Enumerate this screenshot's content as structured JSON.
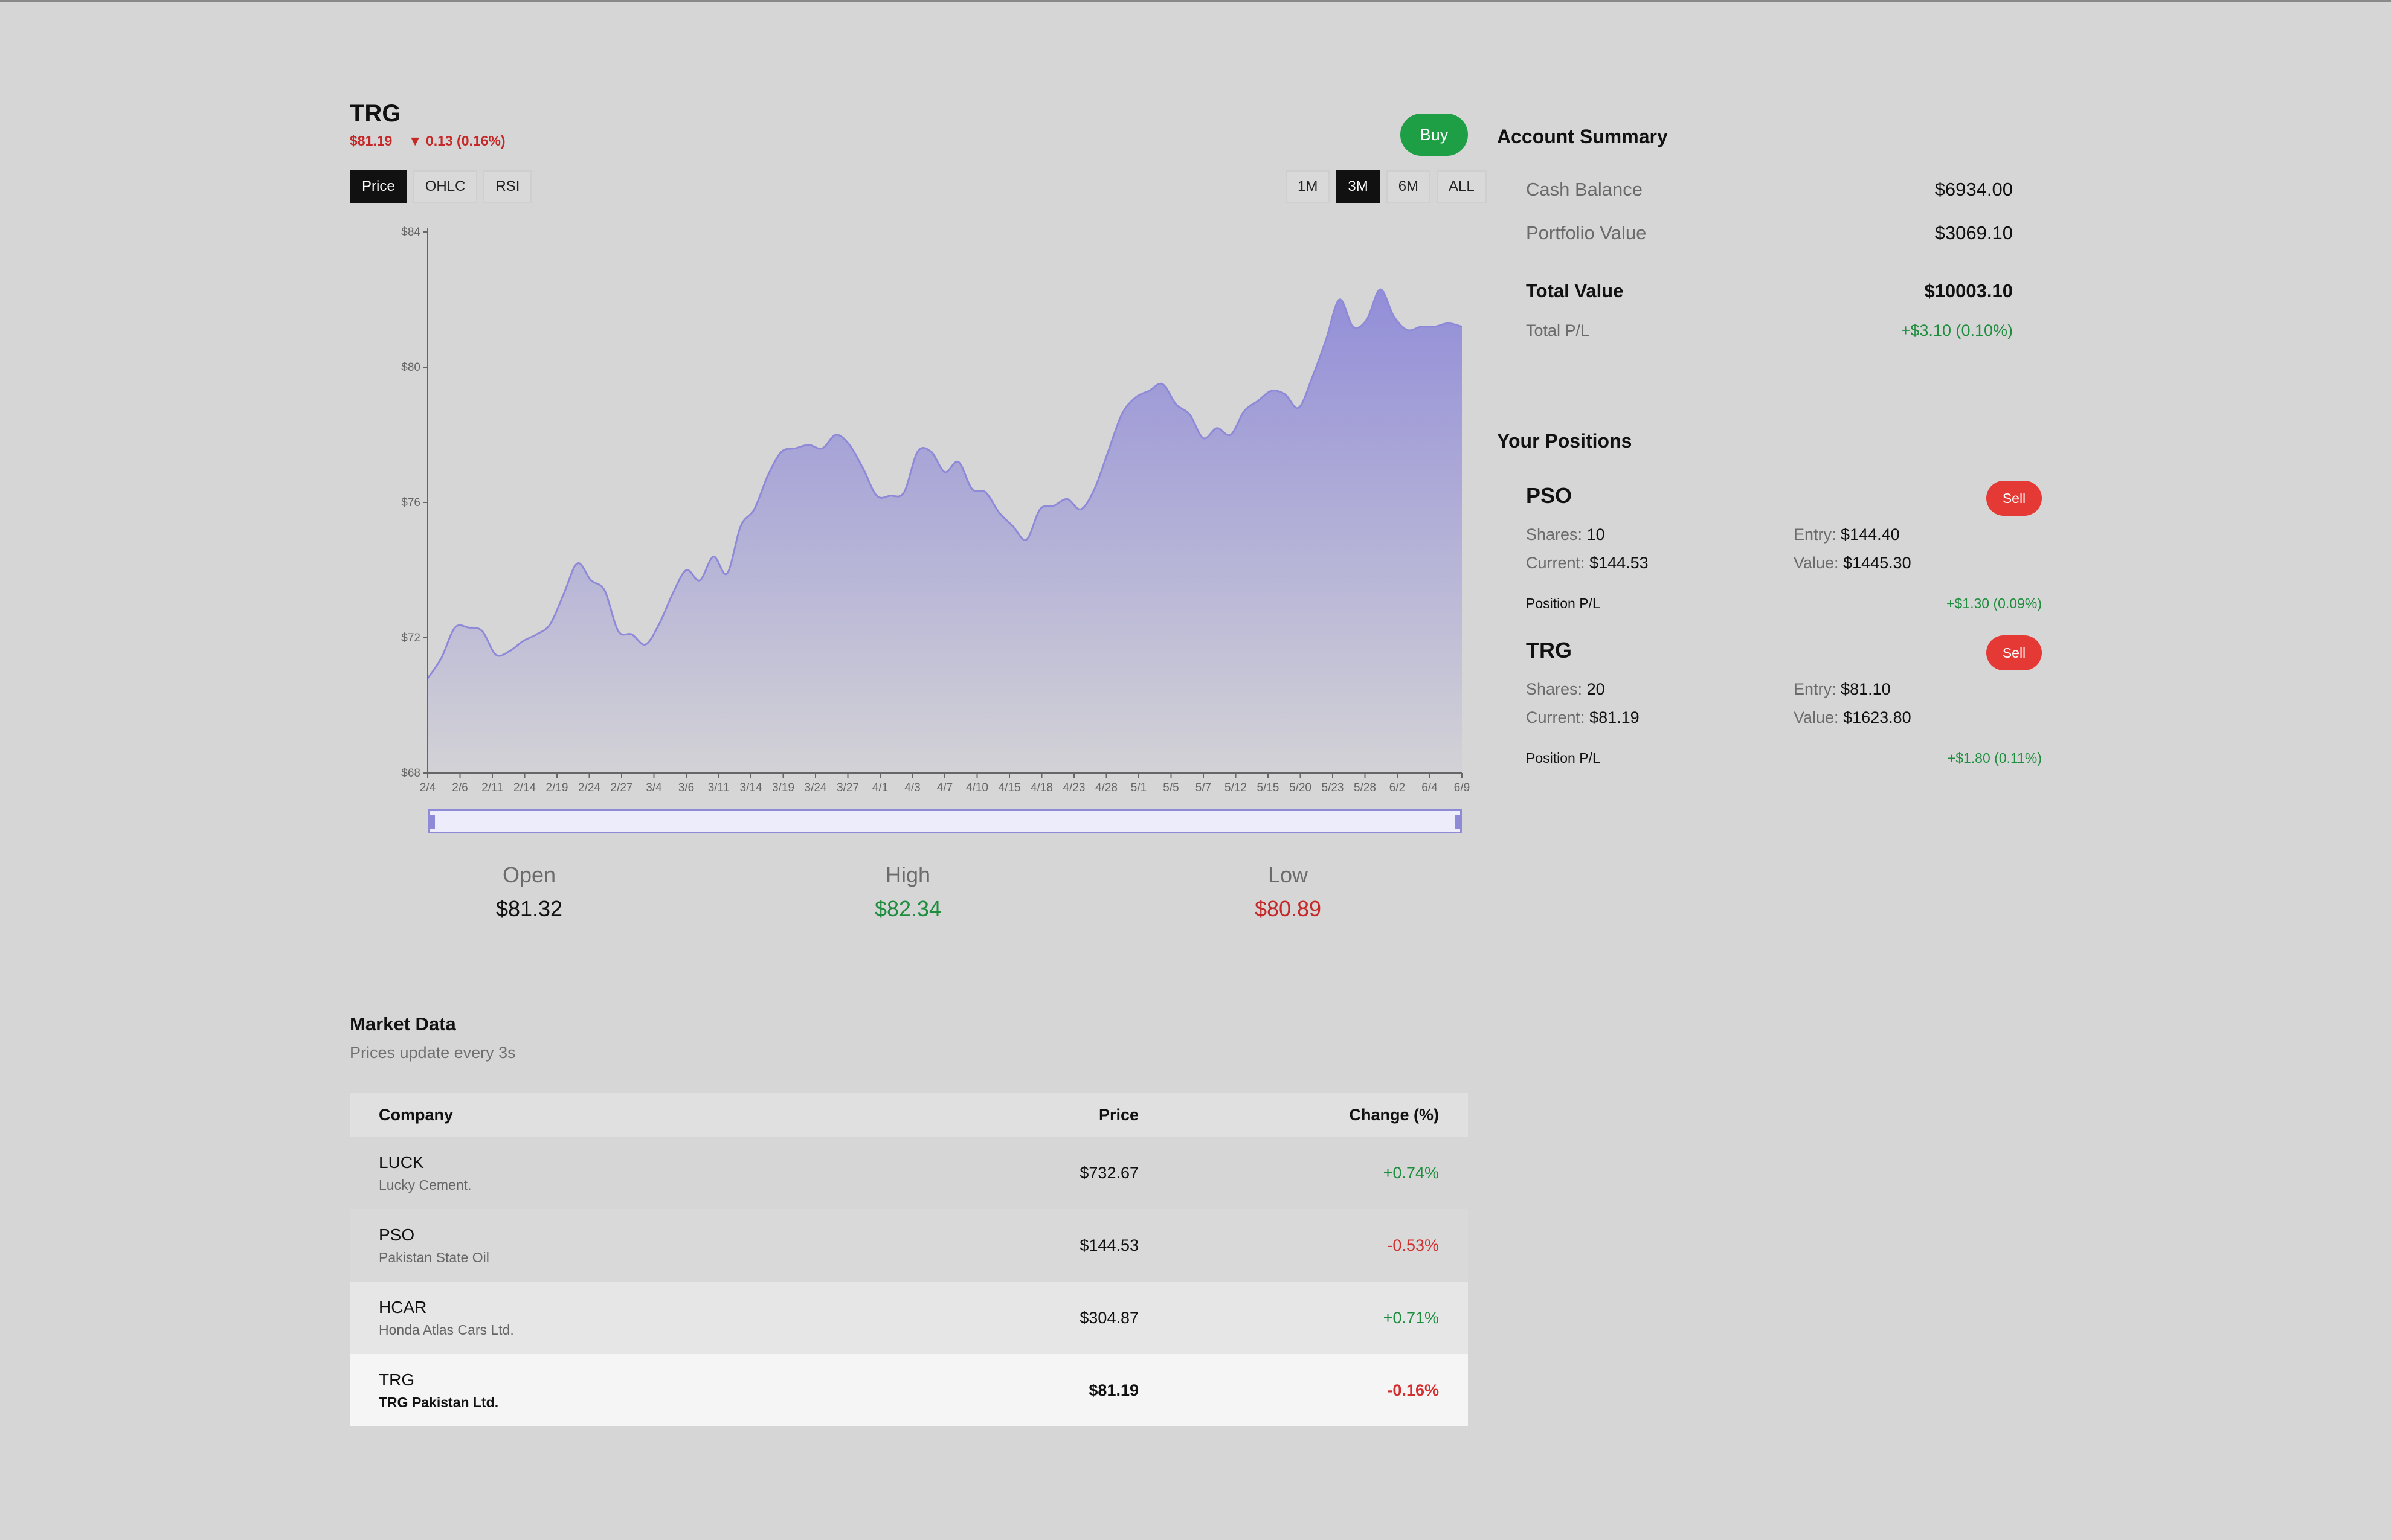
{
  "stock": {
    "ticker": "TRG",
    "price": "$81.19",
    "change": "▼ 0.13 (0.16%)",
    "buy_label": "Buy"
  },
  "chart_tabs": [
    "Price",
    "OHLC",
    "RSI"
  ],
  "active_tab": "Price",
  "ranges": [
    "1M",
    "3M",
    "6M",
    "ALL"
  ],
  "active_range": "3M",
  "chart_data": {
    "type": "area",
    "y_ticks": [
      "$84",
      "$80",
      "$76",
      "$72",
      "$68"
    ],
    "ylim": [
      68,
      84
    ],
    "x_labels": [
      "2/4",
      "2/6",
      "2/11",
      "2/14",
      "2/19",
      "2/24",
      "2/27",
      "3/4",
      "3/6",
      "3/11",
      "3/14",
      "3/19",
      "3/24",
      "3/27",
      "4/1",
      "4/3",
      "4/7",
      "4/10",
      "4/15",
      "4/18",
      "4/23",
      "4/28",
      "5/1",
      "5/5",
      "5/7",
      "5/12",
      "5/15",
      "5/20",
      "5/23",
      "5/28",
      "6/2",
      "6/4",
      "6/9"
    ],
    "values": [
      70.8,
      71.4,
      72.3,
      72.3,
      72.2,
      71.5,
      71.6,
      71.9,
      72.1,
      72.4,
      73.3,
      74.2,
      73.7,
      73.4,
      72.2,
      72.1,
      71.8,
      72.4,
      73.3,
      74.0,
      73.7,
      74.4,
      73.9,
      75.3,
      75.8,
      76.8,
      77.5,
      77.6,
      77.7,
      77.6,
      78.0,
      77.7,
      77.0,
      76.2,
      76.2,
      76.3,
      77.5,
      77.5,
      76.9,
      77.2,
      76.4,
      76.3,
      75.7,
      75.3,
      74.9,
      75.8,
      75.9,
      76.1,
      75.8,
      76.4,
      77.5,
      78.6,
      79.1,
      79.3,
      79.5,
      78.9,
      78.6,
      77.9,
      78.2,
      78.0,
      78.7,
      79.0,
      79.3,
      79.2,
      78.8,
      79.7,
      80.8,
      82.0,
      81.2,
      81.4,
      82.3,
      81.5,
      81.1,
      81.2,
      81.2,
      81.3,
      81.2
    ],
    "color": "#8f8ad8"
  },
  "ohl": {
    "open_label": "Open",
    "open": "$81.32",
    "high_label": "High",
    "high": "$82.34",
    "low_label": "Low",
    "low": "$80.89"
  },
  "market": {
    "title": "Market Data",
    "subtitle": "Prices update every 3s",
    "columns": [
      "Company",
      "Price",
      "Change (%)"
    ],
    "rows": [
      {
        "symbol": "LUCK",
        "name": "Lucky Cement.",
        "price": "$732.67",
        "change": "+0.74%"
      },
      {
        "symbol": "PSO",
        "name": "Pakistan State Oil",
        "price": "$144.53",
        "change": "-0.53%"
      },
      {
        "symbol": "HCAR",
        "name": "Honda Atlas Cars Ltd.",
        "price": "$304.87",
        "change": "+0.71%"
      },
      {
        "symbol": "TRG",
        "name": "TRG Pakistan Ltd.",
        "price": "$81.19",
        "change": "-0.16%"
      }
    ]
  },
  "account": {
    "title": "Account Summary",
    "cash_label": "Cash Balance",
    "cash": "$6934.00",
    "portfolio_label": "Portfolio Value",
    "portfolio": "$3069.10",
    "total_label": "Total Value",
    "total": "$10003.10",
    "pl_label": "Total P/L",
    "pl": "+$3.10 (0.10%)"
  },
  "positions": {
    "title": "Your Positions",
    "sell_label": "Sell",
    "shares_label": "Shares:",
    "entry_label": "Entry:",
    "current_label": "Current:",
    "value_label": "Value:",
    "pl_label": "Position P/L",
    "items": [
      {
        "symbol": "PSO",
        "shares": "10",
        "entry": "$144.40",
        "current": "$144.53",
        "value": "$1445.30",
        "pl": "+$1.30 (0.09%)"
      },
      {
        "symbol": "TRG",
        "shares": "20",
        "entry": "$81.10",
        "current": "$81.19",
        "value": "$1623.80",
        "pl": "+$1.80 (0.11%)"
      }
    ]
  }
}
